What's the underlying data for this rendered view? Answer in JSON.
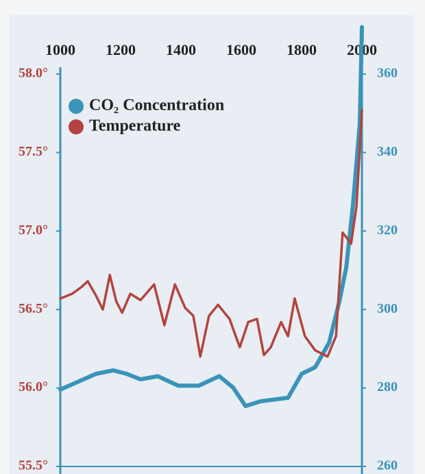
{
  "chart_data": {
    "type": "line",
    "xlim": [
      1000,
      2000
    ],
    "xticks": [
      1000,
      1200,
      1400,
      1600,
      1800,
      2000
    ],
    "ylim": [
      55.5,
      58.0
    ],
    "yticks": [
      {
        "value": 55.5,
        "label": "55.5°"
      },
      {
        "value": 56.0,
        "label": "56.0°"
      },
      {
        "value": 56.5,
        "label": "56.5°"
      },
      {
        "value": 57.0,
        "label": "57.0°"
      },
      {
        "value": 57.5,
        "label": "57.5°"
      },
      {
        "value": 58.0,
        "label": "58.0°"
      }
    ],
    "y2lim": [
      260,
      360
    ],
    "y2ticks": [
      260,
      280,
      300,
      320,
      340,
      360
    ],
    "legend": "upper left",
    "series": [
      {
        "name": "CO₂ Concentration",
        "color": "#3b93b8",
        "axis": "y2",
        "x": [
          1000,
          1050,
          1118,
          1175,
          1220,
          1266,
          1323,
          1391,
          1459,
          1527,
          1573,
          1614,
          1664,
          1755,
          1800,
          1845,
          1891,
          1925,
          1948,
          1970,
          1993,
          2000
        ],
        "values": [
          279.6,
          281.3,
          283.6,
          284.5,
          283.6,
          282.2,
          283.0,
          280.6,
          280.6,
          283.0,
          280.1,
          275.4,
          276.6,
          277.5,
          283.6,
          285.3,
          291.5,
          302.0,
          310.7,
          326.4,
          347.4,
          372
        ]
      },
      {
        "name": "Temperature",
        "color": "#b3433f",
        "axis": "y",
        "x": [
          1000,
          1039,
          1068,
          1091,
          1118,
          1141,
          1164,
          1186,
          1205,
          1232,
          1266,
          1311,
          1345,
          1380,
          1414,
          1441,
          1464,
          1493,
          1523,
          1561,
          1595,
          1623,
          1652,
          1675,
          1698,
          1732,
          1755,
          1777,
          1811,
          1845,
          1886,
          1914,
          1936,
          1964,
          1982,
          2000
        ],
        "values": [
          56.57,
          56.6,
          56.64,
          56.68,
          56.59,
          56.5,
          56.72,
          56.55,
          56.48,
          56.6,
          56.56,
          56.66,
          56.4,
          56.66,
          56.51,
          56.46,
          56.2,
          56.46,
          56.53,
          56.44,
          56.26,
          56.42,
          56.44,
          56.21,
          56.26,
          56.42,
          56.33,
          56.57,
          56.33,
          56.24,
          56.2,
          56.33,
          56.99,
          56.92,
          57.16,
          57.77
        ]
      }
    ]
  }
}
